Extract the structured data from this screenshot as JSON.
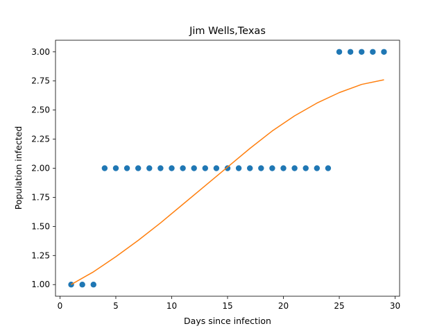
{
  "chart_data": {
    "type": "scatter",
    "title": "Jim Wells,Texas",
    "xlabel": "Days since infection",
    "ylabel": "Population infected",
    "xlim": [
      -0.4,
      30.4
    ],
    "ylim": [
      0.9,
      3.1
    ],
    "xticks": [
      0,
      5,
      10,
      15,
      20,
      25,
      30
    ],
    "xtick_labels": [
      "0",
      "5",
      "10",
      "15",
      "20",
      "25",
      "30"
    ],
    "yticks": [
      1.0,
      1.25,
      1.5,
      1.75,
      2.0,
      2.25,
      2.5,
      2.75,
      3.0
    ],
    "ytick_labels": [
      "1.00",
      "1.25",
      "1.50",
      "1.75",
      "2.00",
      "2.25",
      "2.50",
      "2.75",
      "3.00"
    ],
    "grid": false,
    "series": [
      {
        "kind": "scatter",
        "color": "#1f77b4",
        "x": [
          1,
          2,
          3,
          4,
          5,
          6,
          7,
          8,
          9,
          10,
          11,
          12,
          13,
          14,
          15,
          16,
          17,
          18,
          19,
          20,
          21,
          22,
          23,
          24,
          25,
          26,
          27,
          28,
          29
        ],
        "y": [
          1,
          1,
          1,
          2,
          2,
          2,
          2,
          2,
          2,
          2,
          2,
          2,
          2,
          2,
          2,
          2,
          2,
          2,
          2,
          2,
          2,
          2,
          2,
          2,
          3,
          3,
          3,
          3,
          3
        ]
      },
      {
        "kind": "line",
        "color": "#ff7f0e",
        "x": [
          1,
          3,
          5,
          7,
          9,
          11,
          13,
          15,
          17,
          19,
          21,
          23,
          25,
          27,
          29
        ],
        "y": [
          1.0,
          1.11,
          1.24,
          1.38,
          1.53,
          1.69,
          1.85,
          2.01,
          2.17,
          2.32,
          2.45,
          2.56,
          2.65,
          2.72,
          2.76
        ]
      }
    ]
  }
}
